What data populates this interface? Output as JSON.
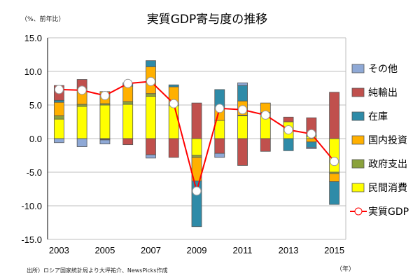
{
  "chart_data": {
    "type": "bar",
    "title": "実質GDP寄与度の推移",
    "ylabel": "（%、前年比）",
    "xlabel": "（年）",
    "source": "出所）ロシア国家統計局より大坪祐介、NewsPicks作成",
    "ylim": [
      -15,
      15
    ],
    "yticks": [
      "15.0",
      "10.0",
      "5.0",
      "0.0",
      "-5.0",
      "-10.0",
      "-15.0"
    ],
    "ytick_values": [
      15,
      10,
      5,
      0,
      -5,
      -10,
      -15
    ],
    "years": [
      2003,
      2004,
      2005,
      2006,
      2007,
      2008,
      2009,
      2010,
      2011,
      2012,
      2013,
      2014,
      2015
    ],
    "xtick_labels": [
      "2003",
      "",
      "2005",
      "",
      "2007",
      "",
      "2009",
      "",
      "2011",
      "",
      "2013",
      "",
      "2015"
    ],
    "legend": [
      "その他",
      "純輸出",
      "在庫",
      "国内投資",
      "政府支出",
      "民間消費",
      "実質GDP"
    ],
    "stack_order": [
      "private",
      "gov",
      "invest",
      "inventory",
      "netexp",
      "other"
    ],
    "series": [
      {
        "key": "private",
        "name": "民間消費",
        "color": "#ffff00",
        "values": [
          2.9,
          4.8,
          5.0,
          5.1,
          6.3,
          4.9,
          -2.5,
          2.7,
          3.4,
          3.8,
          2.5,
          0.3,
          -5.0
        ]
      },
      {
        "key": "gov",
        "name": "政府支出",
        "color": "#8aa23c",
        "values": [
          0.5,
          0.3,
          0.2,
          0.4,
          0.4,
          0.3,
          -0.3,
          0.0,
          0.1,
          0.1,
          0.0,
          0.2,
          -0.2
        ]
      },
      {
        "key": "invest",
        "name": "国内投資",
        "color": "#ffb000",
        "values": [
          2.0,
          2.4,
          1.8,
          2.3,
          4.0,
          2.5,
          -3.5,
          1.7,
          2.1,
          1.4,
          0.0,
          -0.5,
          -1.2
        ]
      },
      {
        "key": "inventory",
        "name": "在庫",
        "color": "#2e8ba8",
        "values": [
          0.3,
          0.0,
          -0.1,
          0.3,
          0.9,
          0.3,
          -6.8,
          2.9,
          2.3,
          0.0,
          -1.8,
          -0.8,
          -3.4
        ]
      },
      {
        "key": "netexp",
        "name": "純輸出",
        "color": "#c0504d",
        "values": [
          2.2,
          1.3,
          -0.1,
          -0.9,
          -2.4,
          -2.8,
          5.3,
          -2.2,
          -4.0,
          -1.9,
          0.7,
          2.6,
          6.9
        ]
      },
      {
        "key": "other",
        "name": "その他",
        "color": "#8fa9d6",
        "values": [
          -0.6,
          -1.2,
          -0.6,
          0.2,
          -0.5,
          0.0,
          0.0,
          -0.6,
          0.4,
          0.0,
          0.0,
          -0.2,
          0.0
        ]
      }
    ],
    "line": {
      "name": "実質GDP",
      "color": "#ff0000",
      "values": [
        7.3,
        7.2,
        6.4,
        8.2,
        8.5,
        5.2,
        -7.8,
        4.5,
        4.3,
        3.5,
        1.3,
        0.7,
        -3.4
      ]
    }
  }
}
